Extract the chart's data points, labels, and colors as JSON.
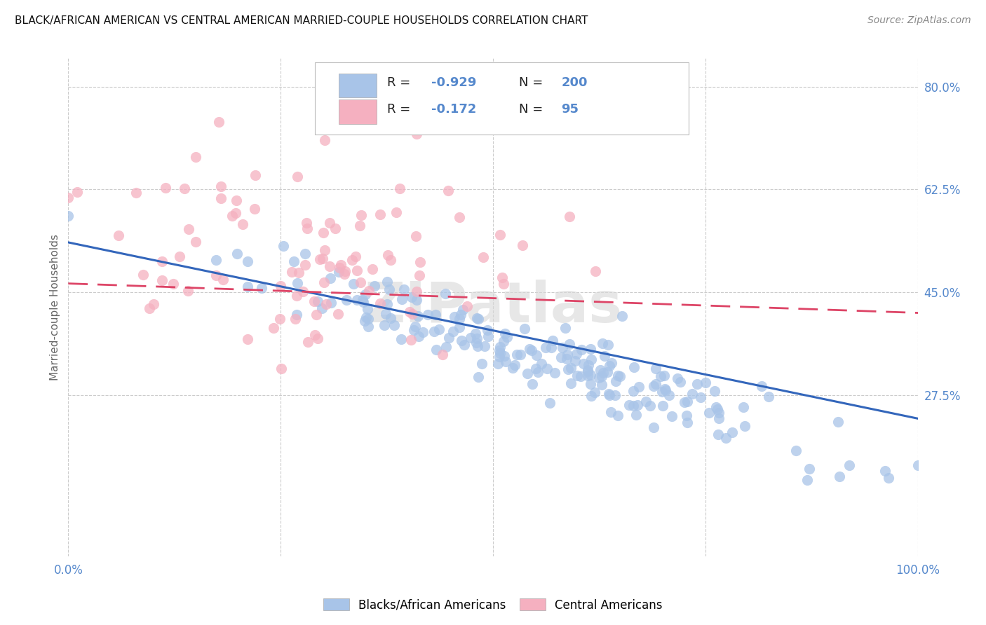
{
  "title": "BLACK/AFRICAN AMERICAN VS CENTRAL AMERICAN MARRIED-COUPLE HOUSEHOLDS CORRELATION CHART",
  "source": "Source: ZipAtlas.com",
  "ylabel": "Married-couple Households",
  "blue_R": -0.929,
  "blue_N": 200,
  "pink_R": -0.172,
  "pink_N": 95,
  "blue_color": "#a8c4e8",
  "pink_color": "#f5b0c0",
  "blue_line_color": "#3366bb",
  "pink_line_color": "#dd4466",
  "blue_label": "Blacks/African Americans",
  "pink_label": "Central Americans",
  "watermark": "ZIPatlas",
  "xlim": [
    0.0,
    1.0
  ],
  "ylim": [
    0.0,
    0.85
  ],
  "ytick_values": [
    0.275,
    0.45,
    0.625,
    0.8
  ],
  "ytick_labels": [
    "27.5%",
    "45.0%",
    "62.5%",
    "80.0%"
  ],
  "blue_line_x": [
    0.0,
    1.0
  ],
  "blue_line_y": [
    0.535,
    0.235
  ],
  "pink_line_x": [
    0.0,
    1.0
  ],
  "pink_line_y": [
    0.465,
    0.415
  ],
  "background_color": "#ffffff",
  "grid_color": "#cccccc",
  "tick_color": "#5588cc",
  "title_color": "#111111",
  "source_color": "#888888",
  "ylabel_color": "#666666"
}
